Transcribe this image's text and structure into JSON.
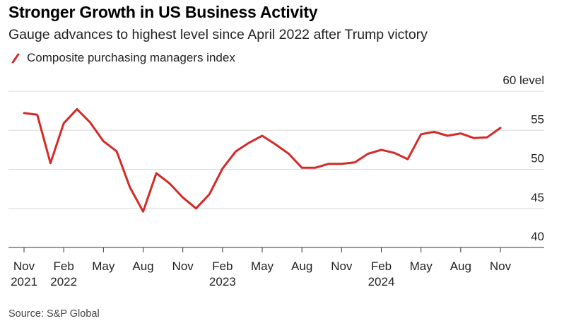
{
  "title": "Stronger Growth in US Business Activity",
  "subtitle": "Gauge advances to highest level since April 2022 after Trump victory",
  "source": "Source: S&P Global",
  "colors": {
    "line": "#d42a27",
    "grid": "#d9d9d9",
    "axis": "#333333"
  },
  "chart_data": {
    "type": "line",
    "title": "Stronger Growth in US Business Activity",
    "subtitle": "Gauge advances to highest level since April 2022 after Trump victory",
    "ylabel": "level",
    "ylim": [
      40,
      60
    ],
    "y_ticks": [
      {
        "value": 60,
        "label": "60 level"
      },
      {
        "value": 55,
        "label": "55"
      },
      {
        "value": 50,
        "label": "50"
      },
      {
        "value": 45,
        "label": "45"
      },
      {
        "value": 40,
        "label": "40"
      }
    ],
    "x_ticks": [
      {
        "index": 0,
        "label": "Nov",
        "sublabel": "2021"
      },
      {
        "index": 3,
        "label": "Feb",
        "sublabel": "2022"
      },
      {
        "index": 6,
        "label": "May",
        "sublabel": ""
      },
      {
        "index": 9,
        "label": "Aug",
        "sublabel": ""
      },
      {
        "index": 12,
        "label": "Nov",
        "sublabel": ""
      },
      {
        "index": 15,
        "label": "Feb",
        "sublabel": "2023"
      },
      {
        "index": 18,
        "label": "May",
        "sublabel": ""
      },
      {
        "index": 21,
        "label": "Aug",
        "sublabel": ""
      },
      {
        "index": 24,
        "label": "Nov",
        "sublabel": ""
      },
      {
        "index": 27,
        "label": "Feb",
        "sublabel": "2024"
      },
      {
        "index": 30,
        "label": "May",
        "sublabel": ""
      },
      {
        "index": 33,
        "label": "Aug",
        "sublabel": ""
      },
      {
        "index": 36,
        "label": "Nov",
        "sublabel": ""
      }
    ],
    "series": [
      {
        "name": "Composite purchasing managers index",
        "x": [
          "Nov 2021",
          "Dec 2021",
          "Jan 2022",
          "Feb 2022",
          "Mar 2022",
          "Apr 2022",
          "May 2022",
          "Jun 2022",
          "Jul 2022",
          "Aug 2022",
          "Sep 2022",
          "Oct 2022",
          "Nov 2022",
          "Dec 2022",
          "Jan 2023",
          "Feb 2023",
          "Mar 2023",
          "Apr 2023",
          "May 2023",
          "Jun 2023",
          "Jul 2023",
          "Aug 2023",
          "Sep 2023",
          "Oct 2023",
          "Nov 2023",
          "Dec 2023",
          "Jan 2024",
          "Feb 2024",
          "Mar 2024",
          "Apr 2024",
          "May 2024",
          "Jun 2024",
          "Jul 2024",
          "Aug 2024",
          "Sep 2024",
          "Oct 2024",
          "Nov 2024"
        ],
        "values": [
          57.2,
          57.0,
          50.8,
          55.9,
          57.7,
          56.0,
          53.6,
          52.3,
          47.7,
          44.6,
          49.5,
          48.2,
          46.4,
          45.0,
          46.8,
          50.1,
          52.3,
          53.4,
          54.3,
          53.2,
          52.0,
          50.2,
          50.2,
          50.7,
          50.7,
          50.9,
          52.0,
          52.5,
          52.1,
          51.3,
          54.5,
          54.8,
          54.3,
          54.6,
          54.0,
          54.1,
          55.3
        ]
      }
    ]
  }
}
